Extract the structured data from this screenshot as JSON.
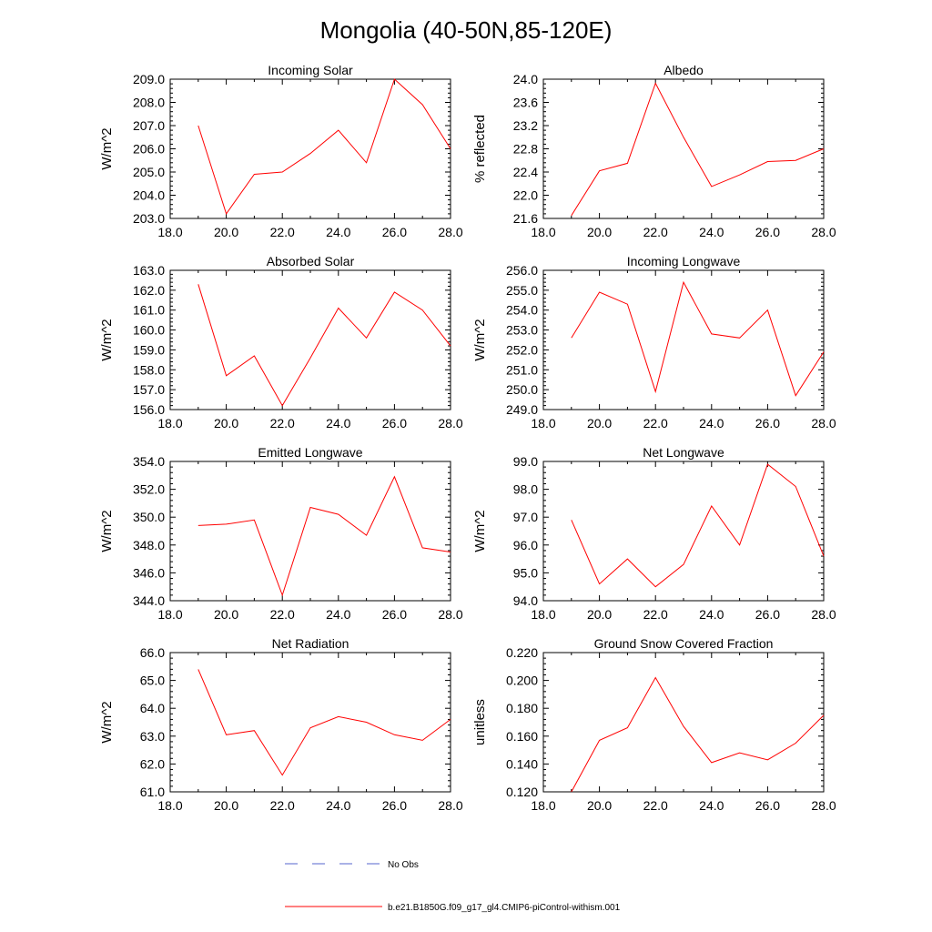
{
  "page": {
    "title": "Mongolia (40-50N,85-120E)"
  },
  "legend": [
    {
      "label": "No Obs",
      "color": "#5566cc",
      "dash": true
    },
    {
      "label": "b.e21.B1850G.f09_g17_gl4.CMIP6-piControl-withism.001",
      "color": "#ff0000",
      "dash": false
    }
  ],
  "chart_data": [
    {
      "type": "line",
      "title": "Incoming Solar",
      "ylabel": "W/m^2",
      "xlim": [
        18,
        28
      ],
      "ylim": [
        203,
        209
      ],
      "xticks": [
        "18.0",
        "20.0",
        "22.0",
        "24.0",
        "26.0",
        "28.0"
      ],
      "yticks": [
        "203.0",
        "204.0",
        "205.0",
        "206.0",
        "207.0",
        "208.0",
        "209.0"
      ],
      "x": [
        19,
        20,
        21,
        22,
        23,
        24,
        25,
        26,
        27,
        28
      ],
      "series": [
        {
          "color": "#ff0000",
          "values": [
            207.0,
            203.2,
            204.9,
            205.0,
            205.8,
            206.8,
            205.4,
            209.0,
            207.9,
            206.0
          ]
        }
      ]
    },
    {
      "type": "line",
      "title": "Albedo",
      "ylabel": "% reflected",
      "xlim": [
        18,
        28
      ],
      "ylim": [
        21.6,
        24.0
      ],
      "xticks": [
        "18.0",
        "20.0",
        "22.0",
        "24.0",
        "26.0",
        "28.0"
      ],
      "yticks": [
        "21.6",
        "22.0",
        "22.4",
        "22.8",
        "23.2",
        "23.6",
        "24.0"
      ],
      "x": [
        19,
        20,
        21,
        22,
        23,
        24,
        25,
        26,
        27,
        28
      ],
      "series": [
        {
          "color": "#ff0000",
          "values": [
            21.65,
            22.42,
            22.55,
            23.93,
            23.0,
            22.15,
            22.35,
            22.58,
            22.6,
            22.8
          ]
        }
      ]
    },
    {
      "type": "line",
      "title": "Absorbed Solar",
      "ylabel": "W/m^2",
      "xlim": [
        18,
        28
      ],
      "ylim": [
        156,
        163
      ],
      "xticks": [
        "18.0",
        "20.0",
        "22.0",
        "24.0",
        "26.0",
        "28.0"
      ],
      "yticks": [
        "156.0",
        "157.0",
        "158.0",
        "159.0",
        "160.0",
        "161.0",
        "162.0",
        "163.0"
      ],
      "x": [
        19,
        20,
        21,
        22,
        23,
        24,
        25,
        26,
        27,
        28
      ],
      "series": [
        {
          "color": "#ff0000",
          "values": [
            162.3,
            157.7,
            158.7,
            156.2,
            158.6,
            161.1,
            159.6,
            161.9,
            161.0,
            159.2
          ]
        }
      ]
    },
    {
      "type": "line",
      "title": "Incoming Longwave",
      "ylabel": "W/m^2",
      "xlim": [
        18,
        28
      ],
      "ylim": [
        249,
        256
      ],
      "xticks": [
        "18.0",
        "20.0",
        "22.0",
        "24.0",
        "26.0",
        "28.0"
      ],
      "yticks": [
        "249.0",
        "250.0",
        "251.0",
        "252.0",
        "253.0",
        "254.0",
        "255.0",
        "256.0"
      ],
      "x": [
        19,
        20,
        21,
        22,
        23,
        24,
        25,
        26,
        27,
        28
      ],
      "series": [
        {
          "color": "#ff0000",
          "values": [
            252.6,
            254.9,
            254.3,
            249.9,
            255.4,
            252.8,
            252.6,
            254.0,
            249.7,
            251.9
          ]
        }
      ]
    },
    {
      "type": "line",
      "title": "Emitted Longwave",
      "ylabel": "W/m^2",
      "xlim": [
        18,
        28
      ],
      "ylim": [
        344,
        354
      ],
      "xticks": [
        "18.0",
        "20.0",
        "22.0",
        "24.0",
        "26.0",
        "28.0"
      ],
      "yticks": [
        "344.0",
        "346.0",
        "348.0",
        "350.0",
        "352.0",
        "354.0"
      ],
      "x": [
        19,
        20,
        21,
        22,
        23,
        24,
        25,
        26,
        27,
        28
      ],
      "series": [
        {
          "color": "#ff0000",
          "values": [
            349.4,
            349.5,
            349.8,
            344.4,
            350.7,
            350.2,
            348.7,
            352.9,
            347.8,
            347.5
          ]
        }
      ]
    },
    {
      "type": "line",
      "title": "Net Longwave",
      "ylabel": "W/m^2",
      "xlim": [
        18,
        28
      ],
      "ylim": [
        94,
        99
      ],
      "xticks": [
        "18.0",
        "20.0",
        "22.0",
        "24.0",
        "26.0",
        "28.0"
      ],
      "yticks": [
        "94.0",
        "95.0",
        "96.0",
        "97.0",
        "98.0",
        "99.0"
      ],
      "x": [
        19,
        20,
        21,
        22,
        23,
        24,
        25,
        26,
        27,
        28
      ],
      "series": [
        {
          "color": "#ff0000",
          "values": [
            96.9,
            94.6,
            95.5,
            94.5,
            95.3,
            97.4,
            96.0,
            98.9,
            98.1,
            95.6
          ]
        }
      ]
    },
    {
      "type": "line",
      "title": "Net Radiation",
      "ylabel": "W/m^2",
      "xlim": [
        18,
        28
      ],
      "ylim": [
        61,
        66
      ],
      "xticks": [
        "18.0",
        "20.0",
        "22.0",
        "24.0",
        "26.0",
        "28.0"
      ],
      "yticks": [
        "61.0",
        "62.0",
        "63.0",
        "64.0",
        "65.0",
        "66.0"
      ],
      "x": [
        19,
        20,
        21,
        22,
        23,
        24,
        25,
        26,
        27,
        28
      ],
      "series": [
        {
          "color": "#ff0000",
          "values": [
            65.4,
            63.05,
            63.2,
            61.6,
            63.3,
            63.7,
            63.5,
            63.05,
            62.85,
            63.6
          ]
        }
      ]
    },
    {
      "type": "line",
      "title": "Ground Snow Covered Fraction",
      "ylabel": "unitless",
      "xlim": [
        18,
        28
      ],
      "ylim": [
        0.12,
        0.22
      ],
      "xticks": [
        "18.0",
        "20.0",
        "22.0",
        "24.0",
        "26.0",
        "28.0"
      ],
      "yticks": [
        "0.120",
        "0.140",
        "0.160",
        "0.180",
        "0.200",
        "0.220"
      ],
      "x": [
        19,
        20,
        21,
        22,
        23,
        24,
        25,
        26,
        27,
        28
      ],
      "series": [
        {
          "color": "#ff0000",
          "values": [
            0.12,
            0.157,
            0.166,
            0.202,
            0.167,
            0.141,
            0.148,
            0.143,
            0.155,
            0.175
          ]
        }
      ]
    }
  ]
}
